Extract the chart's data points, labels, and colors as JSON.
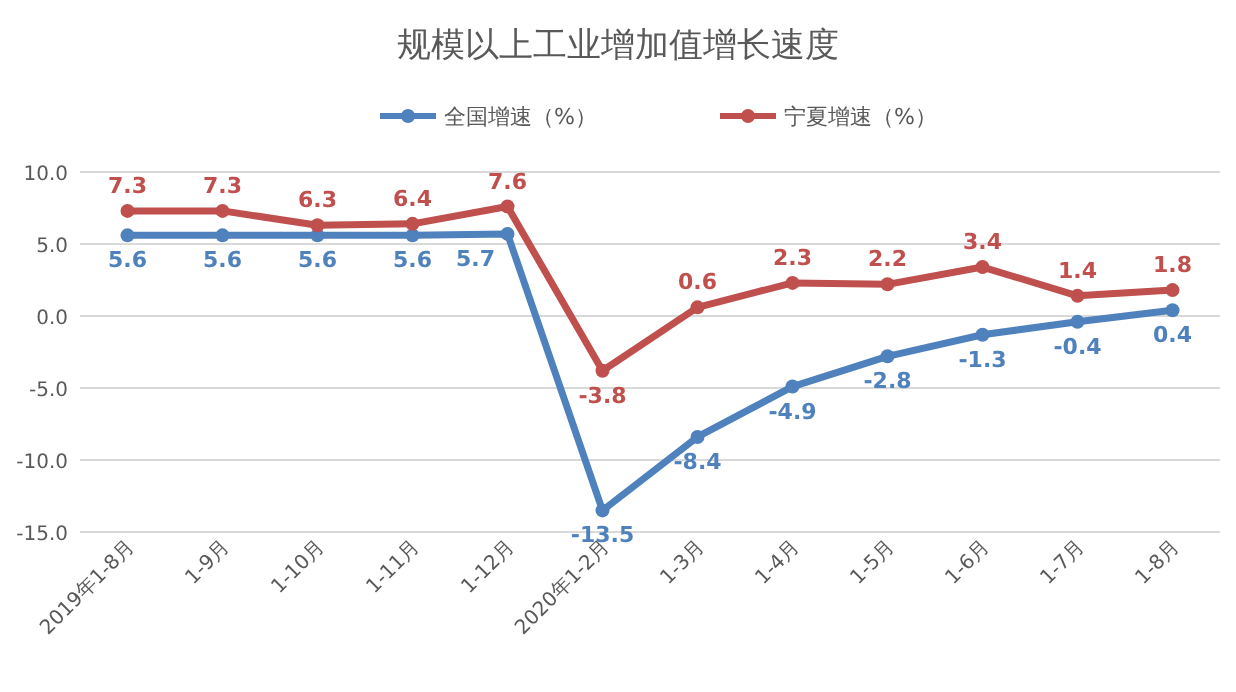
{
  "chart_data": {
    "type": "line",
    "title": "规模以上工业增加值增长速度",
    "categories": [
      "2019年1-8月",
      "1-9月",
      "1-10月",
      "1-11月",
      "1-12月",
      "2020年1-2月",
      "1-3月",
      "1-4月",
      "1-5月",
      "1-6月",
      "1-7月",
      "1-8月"
    ],
    "series": [
      {
        "name": "全国增速（%）",
        "color": "#4f81bd",
        "values": [
          5.6,
          5.6,
          5.6,
          5.6,
          5.7,
          -13.5,
          -8.4,
          -4.9,
          -2.8,
          -1.3,
          -0.4,
          0.4
        ]
      },
      {
        "name": "宁夏增速（%）",
        "color": "#c0504d",
        "values": [
          7.3,
          7.3,
          6.3,
          6.4,
          7.6,
          -3.8,
          0.6,
          2.3,
          2.2,
          3.4,
          1.4,
          1.8
        ]
      }
    ],
    "ylim": [
      -15,
      10
    ],
    "yticks": [
      {
        "value": -15,
        "label": "-15.0"
      },
      {
        "value": -10,
        "label": "-10.0"
      },
      {
        "value": -5,
        "label": "-5.0"
      },
      {
        "value": 0,
        "label": "0.0"
      },
      {
        "value": 5,
        "label": "5.0"
      },
      {
        "value": 10,
        "label": "10.0"
      }
    ],
    "grid": "y",
    "legend": "top",
    "marker": "circle",
    "data_labels": true
  }
}
